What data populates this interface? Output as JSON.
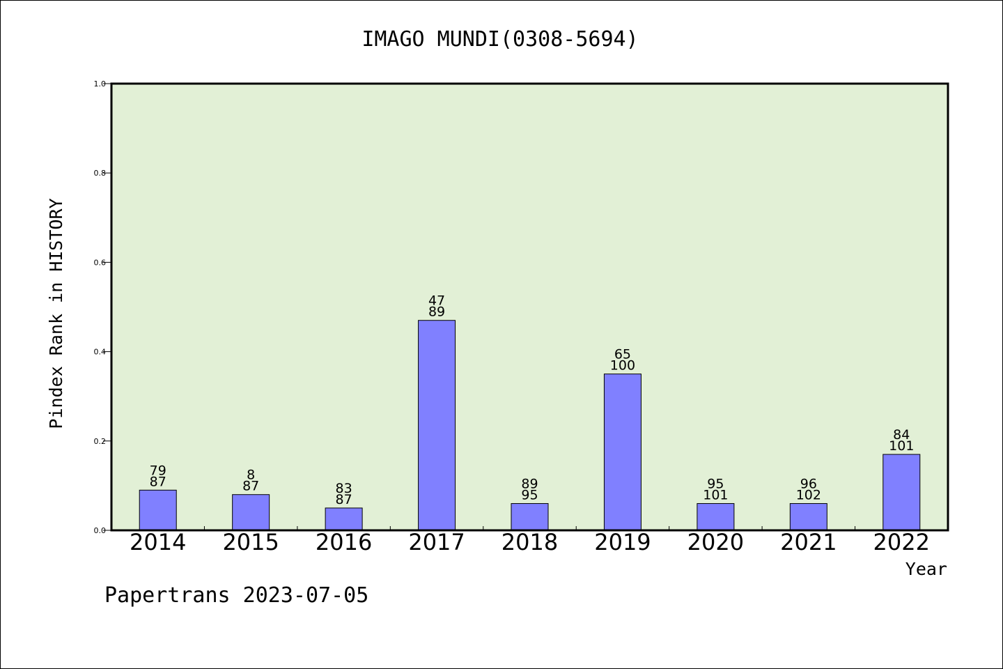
{
  "chart_data": {
    "type": "bar",
    "title": "IMAGO MUNDI(0308-5694)",
    "xlabel": "Year",
    "ylabel": "Pindex Rank in HISTORY",
    "categories": [
      "2014",
      "2015",
      "2016",
      "2017",
      "2018",
      "2019",
      "2020",
      "2021",
      "2022"
    ],
    "values": [
      0.09,
      0.08,
      0.05,
      0.47,
      0.06,
      0.35,
      0.06,
      0.06,
      0.17
    ],
    "bar_labels_top": [
      "79",
      "8",
      "83",
      "47",
      "89",
      "65",
      "95",
      "96",
      "84"
    ],
    "bar_labels_bottom": [
      "87",
      "87",
      "87",
      "89",
      "95",
      "100",
      "101",
      "102",
      "101"
    ],
    "ylim": [
      0,
      1.0
    ],
    "yticks": [
      "0.0",
      "0.2",
      "0.4",
      "0.6",
      "0.8",
      "1.0"
    ],
    "grid": false,
    "footer": "Papertrans 2023-07-05",
    "colors": {
      "plot_background": "#e2f0d6",
      "bar_fill": "#8080ff",
      "bar_stroke": "#000000",
      "axis": "#000000",
      "text": "#000000"
    }
  }
}
